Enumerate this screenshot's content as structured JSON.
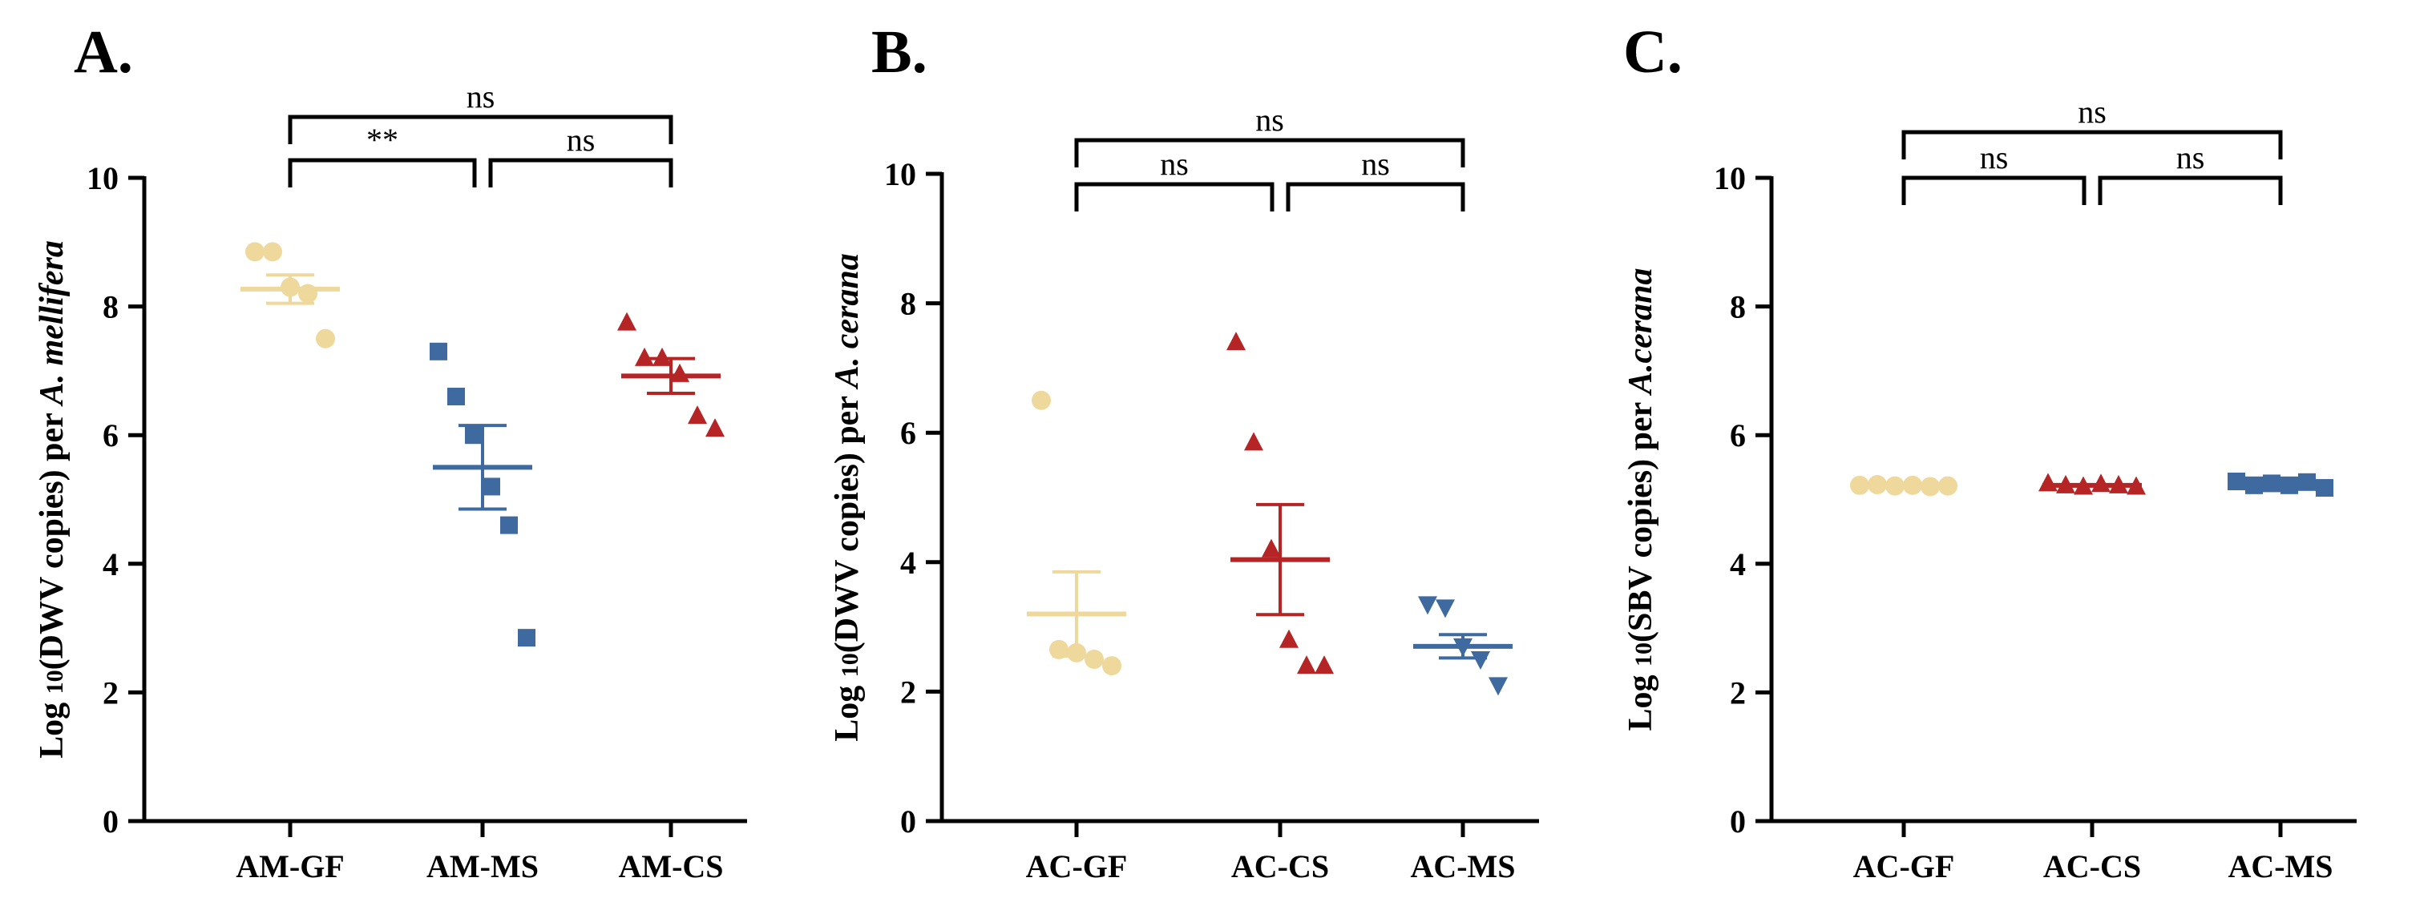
{
  "colors": {
    "GF": "#efd89b",
    "MS": "#3f6aa0",
    "CS": "#b52526",
    "axis": "#000000"
  },
  "chart_data": [
    {
      "panel_label": "A.",
      "type": "scatter",
      "ylabel": {
        "prefix": "Log ",
        "sub": "10",
        "mid": "(DWV copies) per ",
        "species": "A. mellifera"
      },
      "ylim": [
        0,
        10
      ],
      "yticks": [
        "0",
        "2",
        "4",
        "6",
        "8",
        "10"
      ],
      "categories": [
        "AM-GF",
        "AM-MS",
        "AM-CS"
      ],
      "series": [
        {
          "name": "AM-GF",
          "group": "GF",
          "marker": "circle",
          "points": [
            8.85,
            8.85,
            8.3,
            8.2,
            7.5
          ],
          "mean": 8.27,
          "sem": 0.22
        },
        {
          "name": "AM-MS",
          "group": "MS",
          "marker": "square",
          "points": [
            7.3,
            6.6,
            6.0,
            5.2,
            4.6,
            2.85
          ],
          "mean": 5.5,
          "sem": 0.65
        },
        {
          "name": "AM-CS",
          "group": "CS",
          "marker": "triangle",
          "points": [
            7.75,
            7.2,
            7.2,
            6.95,
            6.3,
            6.1
          ],
          "mean": 6.92,
          "sem": 0.27
        }
      ],
      "comparisons": [
        {
          "from": 0,
          "to": 1,
          "label": "**",
          "level": 1
        },
        {
          "from": 1,
          "to": 2,
          "label": "ns",
          "level": 1
        },
        {
          "from": 0,
          "to": 2,
          "label": "ns",
          "level": 2
        }
      ]
    },
    {
      "panel_label": "B.",
      "type": "scatter",
      "ylabel": {
        "prefix": "Log ",
        "sub": "10",
        "mid": "(DWV copies) per ",
        "species": "A. cerana"
      },
      "ylim": [
        0,
        10
      ],
      "yticks": [
        "0",
        "2",
        "4",
        "6",
        "8",
        "10"
      ],
      "categories": [
        "AC-GF",
        "AC-CS",
        "AC-MS"
      ],
      "series": [
        {
          "name": "AC-GF",
          "group": "GF",
          "marker": "circle",
          "points": [
            6.5,
            2.65,
            2.6,
            2.5,
            2.4
          ],
          "mean": 3.2,
          "sem": 0.65
        },
        {
          "name": "AC-CS",
          "group": "CS",
          "marker": "triangle",
          "points": [
            7.4,
            5.85,
            4.2,
            2.8,
            2.4,
            2.4
          ],
          "mean": 4.04,
          "sem": 0.85
        },
        {
          "name": "AC-MS",
          "group": "MS",
          "marker": "triangle-down",
          "points": [
            3.35,
            3.3,
            2.7,
            2.5,
            2.1
          ],
          "mean": 2.7,
          "sem": 0.18
        }
      ],
      "comparisons": [
        {
          "from": 0,
          "to": 1,
          "label": "ns",
          "level": 1
        },
        {
          "from": 1,
          "to": 2,
          "label": "ns",
          "level": 1
        },
        {
          "from": 0,
          "to": 2,
          "label": "ns",
          "level": 2
        }
      ]
    },
    {
      "panel_label": "C.",
      "type": "scatter",
      "ylabel": {
        "prefix": "Log ",
        "sub": "10",
        "mid": "(SBV copies) per ",
        "species": "A.cerana"
      },
      "ylim": [
        0,
        10
      ],
      "yticks": [
        "0",
        "2",
        "4",
        "6",
        "8",
        "10"
      ],
      "categories": [
        "AC-GF",
        "AC-CS",
        "AC-MS"
      ],
      "series": [
        {
          "name": "AC-GF",
          "group": "GF",
          "marker": "circle",
          "points": [
            5.22,
            5.23,
            5.21,
            5.22,
            5.2,
            5.21
          ],
          "mean": 5.22,
          "sem": 0.01
        },
        {
          "name": "AC-CS",
          "group": "CS",
          "marker": "triangle",
          "points": [
            5.25,
            5.22,
            5.2,
            5.24,
            5.22,
            5.2
          ],
          "mean": 5.22,
          "sem": 0.01
        },
        {
          "name": "AC-MS",
          "group": "MS",
          "marker": "square",
          "points": [
            5.28,
            5.22,
            5.25,
            5.22,
            5.27,
            5.18
          ],
          "mean": 5.23,
          "sem": 0.02
        }
      ],
      "comparisons": [
        {
          "from": 0,
          "to": 1,
          "label": "ns",
          "level": 1
        },
        {
          "from": 1,
          "to": 2,
          "label": "ns",
          "level": 1
        },
        {
          "from": 0,
          "to": 2,
          "label": "ns",
          "level": 2
        }
      ]
    }
  ]
}
